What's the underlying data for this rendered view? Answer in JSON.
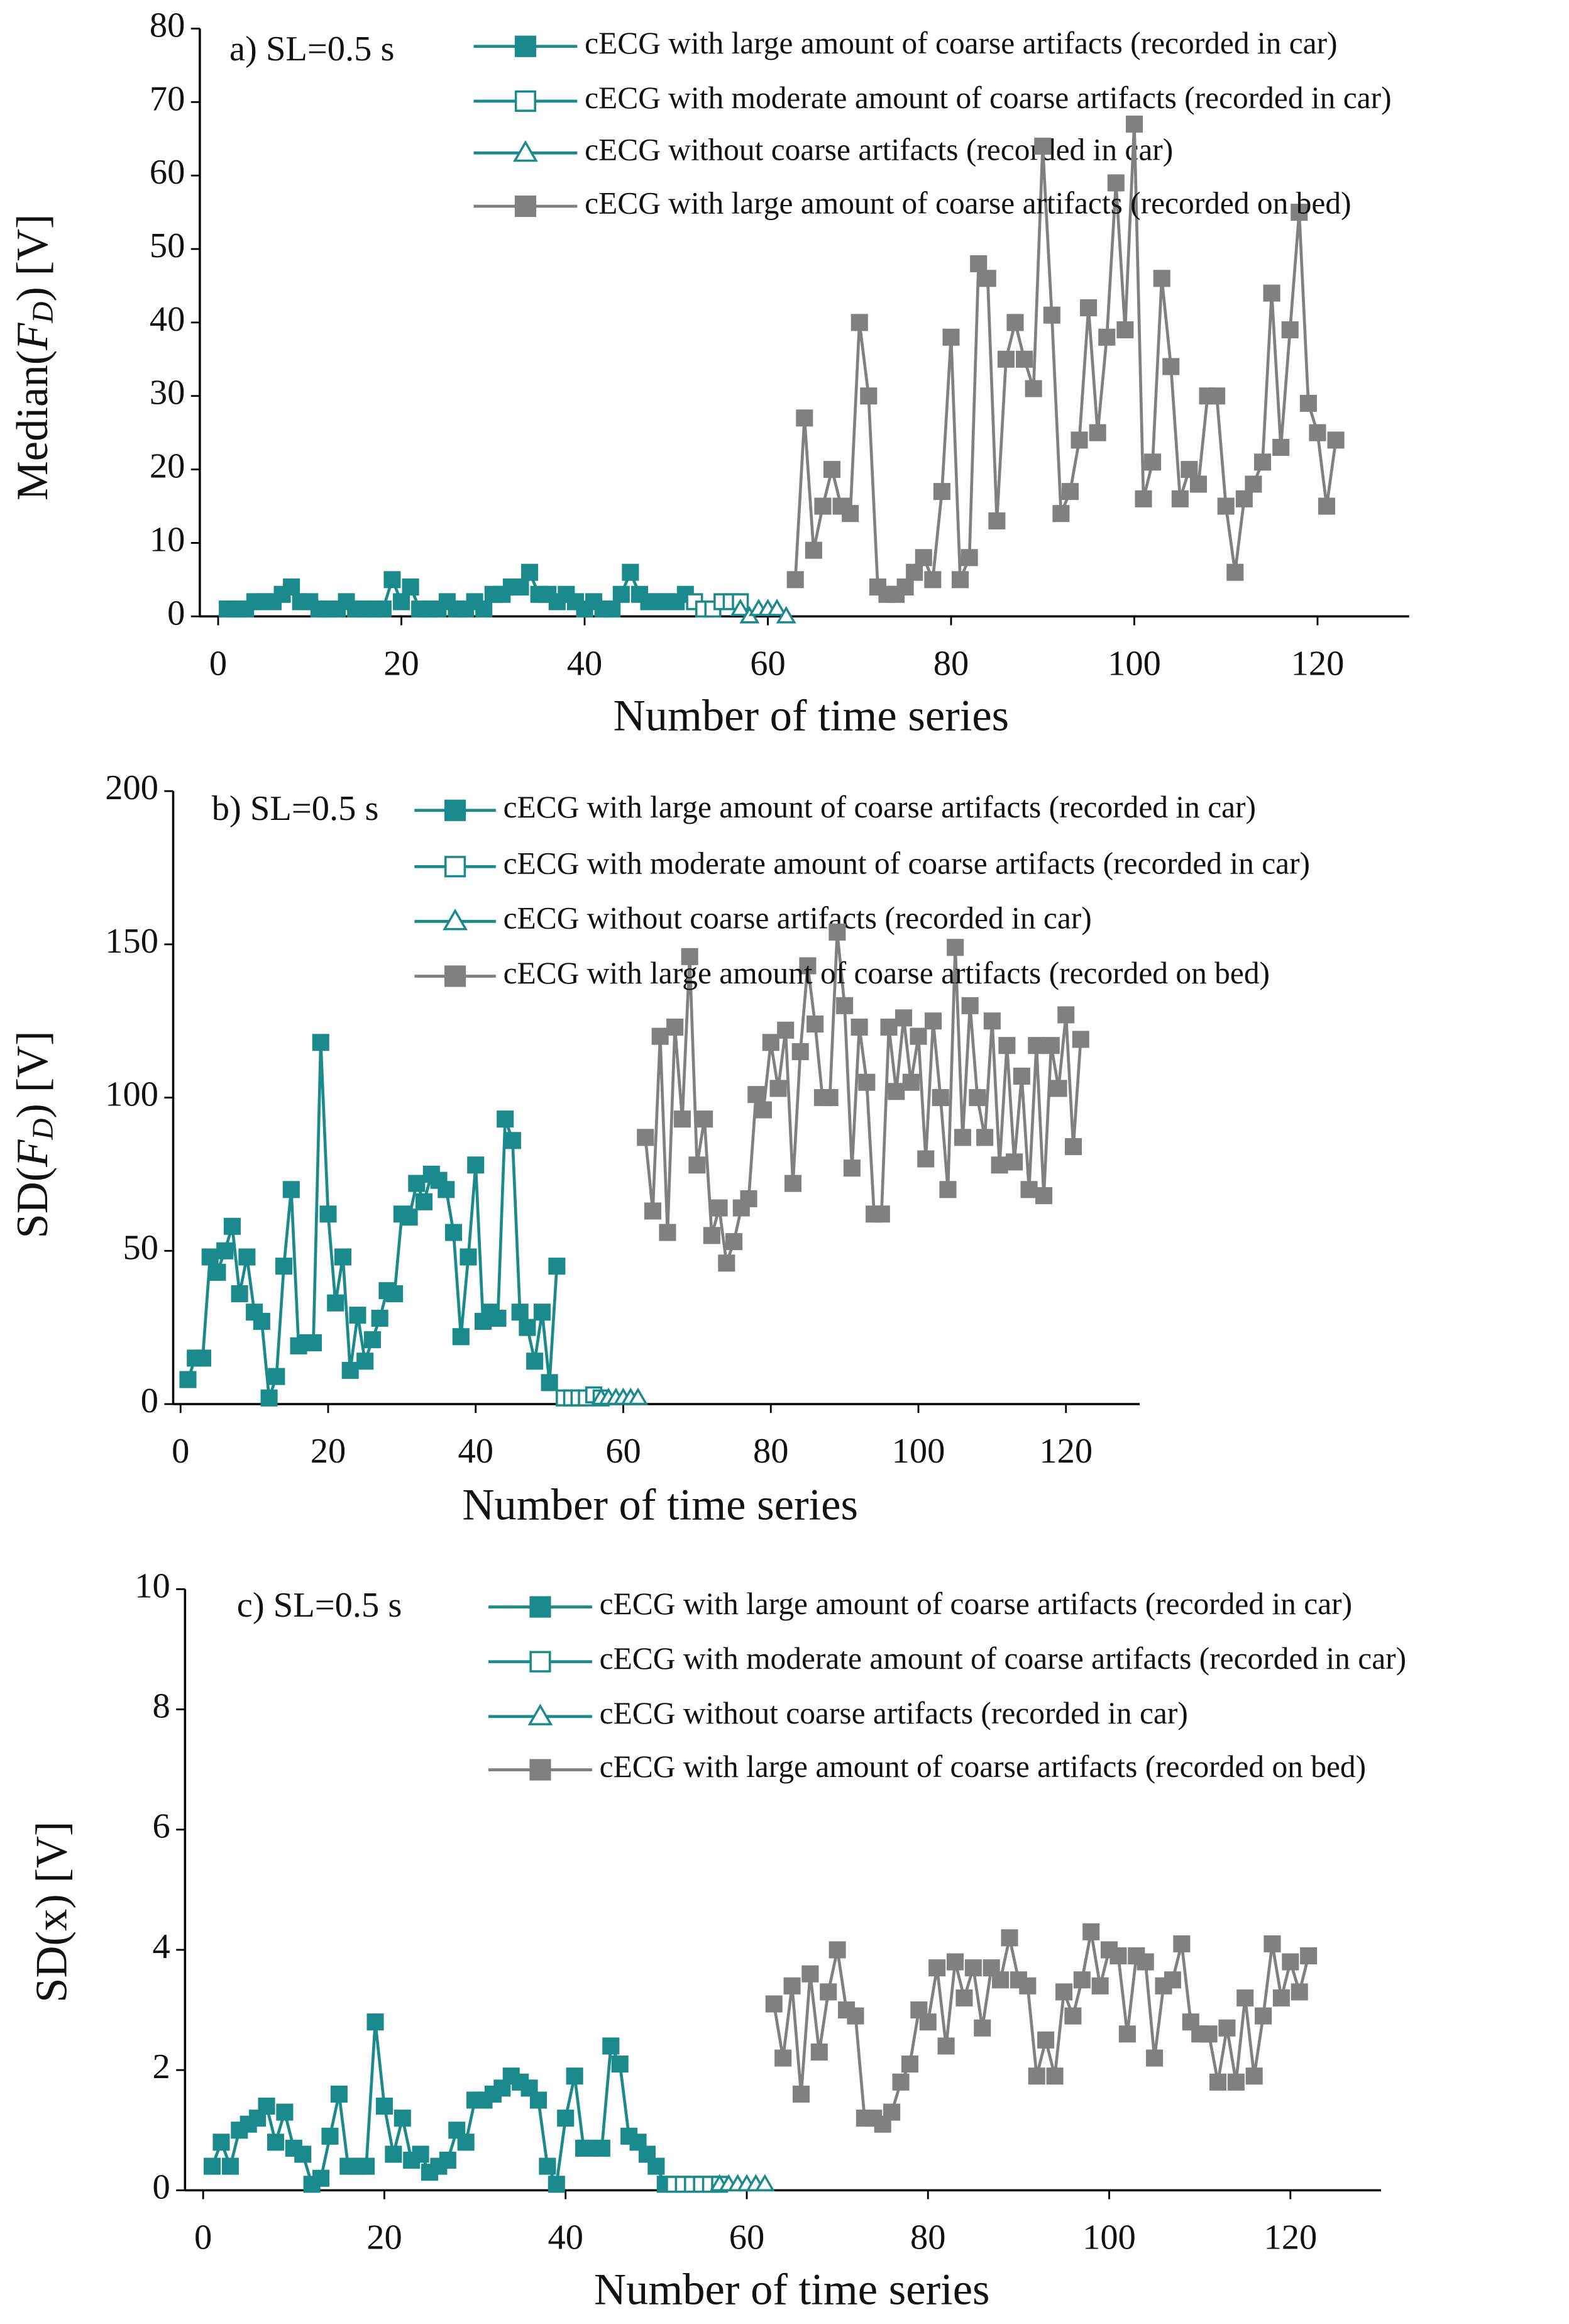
{
  "chart_data": [
    {
      "type": "line",
      "label": "a) SL=0.5 s",
      "xlabel": "Number of time series",
      "ylabel": {
        "pre": "Median(",
        "var": "F",
        "sub": "D",
        "post": ") [V]"
      },
      "xlim": [
        -2,
        130
      ],
      "xticks": [
        0,
        20,
        40,
        60,
        80,
        100,
        120
      ],
      "ylim": [
        0,
        80
      ],
      "yticks": [
        0,
        10,
        20,
        30,
        40,
        50,
        60,
        70,
        80
      ],
      "series": [
        {
          "name": "cECG  with large amount of coarse artifacts  (recorded in car)",
          "color": "#1a8a8c",
          "marker": "square",
          "filled": true,
          "x": [
            1,
            2,
            3,
            4,
            5,
            6,
            7,
            8,
            9,
            10,
            11,
            12,
            13,
            14,
            15,
            16,
            17,
            18,
            19,
            20,
            21,
            22,
            23,
            24,
            25,
            26,
            27,
            28,
            29,
            30,
            31,
            32,
            33,
            34,
            35,
            36,
            37,
            38,
            39,
            40,
            41,
            42,
            43,
            44,
            45,
            46,
            47,
            48,
            49,
            50,
            51
          ],
          "values": [
            1,
            1,
            1,
            2,
            2,
            2,
            3,
            4,
            2,
            2,
            1,
            1,
            1,
            2,
            1,
            1,
            1,
            1,
            5,
            2,
            4,
            1,
            1,
            1,
            2,
            1,
            1,
            2,
            1,
            3,
            3,
            4,
            4,
            6,
            3,
            3,
            2,
            3,
            2,
            1,
            2,
            1,
            1,
            3,
            6,
            3,
            2,
            2,
            2,
            2,
            3
          ]
        },
        {
          "name": "cECG   with moderate amount of coarse artifacts (recorded in car)",
          "color": "#1a8a8c",
          "marker": "square",
          "filled": false,
          "x": [
            52,
            53,
            54,
            55,
            56,
            57
          ],
          "values": [
            2,
            1,
            1,
            2,
            2,
            2
          ]
        },
        {
          "name": "cECG    without coarse artifacts (recorded in car)",
          "color": "#1a8a8c",
          "marker": "triangle",
          "filled": false,
          "x": [
            57,
            58,
            59,
            60,
            61,
            62
          ],
          "values": [
            1,
            0,
            1,
            1,
            1,
            0
          ]
        },
        {
          "name": "cECG  with large amount of coarse artifacts (recorded on bed)",
          "color": "#808080",
          "marker": "square",
          "filled": true,
          "x": [
            63,
            64,
            65,
            66,
            67,
            68,
            69,
            70,
            71,
            72,
            73,
            74,
            75,
            76,
            77,
            78,
            79,
            80,
            81,
            82,
            83,
            84,
            85,
            86,
            87,
            88,
            89,
            90,
            91,
            92,
            93,
            94,
            95,
            96,
            97,
            98,
            99,
            100,
            101,
            102,
            103,
            104,
            105,
            106,
            107,
            108,
            109,
            110,
            111,
            112,
            113,
            114,
            115,
            116,
            117,
            118,
            119,
            120,
            121,
            122
          ],
          "values": [
            5,
            27,
            9,
            15,
            20,
            15,
            14,
            40,
            30,
            4,
            3,
            3,
            4,
            6,
            8,
            5,
            17,
            38,
            5,
            8,
            48,
            46,
            13,
            35,
            40,
            35,
            31,
            64,
            41,
            14,
            17,
            24,
            42,
            25,
            38,
            59,
            39,
            67,
            16,
            21,
            46,
            34,
            16,
            20,
            18,
            30,
            30,
            15,
            6,
            16,
            18,
            21,
            44,
            23,
            39,
            55,
            29,
            25,
            15,
            24
          ]
        }
      ]
    },
    {
      "type": "line",
      "label": "b) SL=0.5 s",
      "xlabel": "Number of time series",
      "ylabel": {
        "pre": "SD(",
        "var": "F",
        "sub": "D",
        "post": ")  [V]"
      },
      "xlim": [
        -1,
        130
      ],
      "xticks": [
        0,
        20,
        40,
        60,
        80,
        100,
        120
      ],
      "ylim": [
        0,
        200
      ],
      "yticks": [
        0,
        50,
        100,
        150,
        200
      ],
      "series": [
        {
          "name": "cECG with large amount of coarse artifacts (recorded in car)",
          "color": "#1a8a8c",
          "marker": "square",
          "filled": true,
          "x": [
            1,
            2,
            3,
            4,
            5,
            6,
            7,
            8,
            9,
            10,
            11,
            12,
            13,
            14,
            15,
            16,
            17,
            18,
            19,
            20,
            21,
            22,
            23,
            24,
            25,
            26,
            27,
            28,
            29,
            30,
            31,
            32,
            33,
            34,
            35,
            36,
            37,
            38,
            39,
            40,
            41,
            42,
            43,
            44,
            45,
            46,
            47,
            48,
            49,
            50,
            51
          ],
          "values": [
            8,
            15,
            15,
            48,
            43,
            50,
            58,
            36,
            48,
            30,
            27,
            2,
            9,
            45,
            70,
            19,
            20,
            20,
            118,
            62,
            33,
            48,
            11,
            29,
            14,
            21,
            28,
            37,
            36,
            62,
            61,
            72,
            66,
            75,
            73,
            70,
            56,
            22,
            48,
            78,
            27,
            30,
            28,
            93,
            86,
            30,
            25,
            14,
            30,
            7,
            45
          ]
        },
        {
          "name": "cECG  with moderate amount of coarse artifacts (recorded in car)",
          "color": "#1a8a8c",
          "marker": "square",
          "filled": false,
          "x": [
            52,
            53,
            54,
            55,
            56,
            57
          ],
          "values": [
            2,
            2,
            2,
            2,
            3,
            2
          ]
        },
        {
          "name": "cECG without coarse artifacts (recorded in car)",
          "color": "#1a8a8c",
          "marker": "triangle",
          "filled": false,
          "x": [
            57,
            58,
            59,
            60,
            61,
            62
          ],
          "values": [
            2,
            2,
            2,
            2,
            2,
            2
          ]
        },
        {
          "name": "cECG  with large amount of coarse artifacts (recorded on bed)",
          "color": "#808080",
          "marker": "square",
          "filled": true,
          "x": [
            63,
            64,
            65,
            66,
            67,
            68,
            69,
            70,
            71,
            72,
            73,
            74,
            75,
            76,
            77,
            78,
            79,
            80,
            81,
            82,
            83,
            84,
            85,
            86,
            87,
            88,
            89,
            90,
            91,
            92,
            93,
            94,
            95,
            96,
            97,
            98,
            99,
            100,
            101,
            102,
            103,
            104,
            105,
            106,
            107,
            108,
            109,
            110,
            111,
            112,
            113,
            114,
            115,
            116,
            117,
            118,
            119,
            120,
            121,
            122
          ],
          "values": [
            87,
            63,
            120,
            56,
            123,
            93,
            146,
            78,
            93,
            55,
            64,
            46,
            53,
            64,
            67,
            101,
            96,
            118,
            103,
            122,
            72,
            115,
            143,
            124,
            100,
            100,
            154,
            130,
            77,
            123,
            105,
            62,
            62,
            123,
            102,
            126,
            105,
            120,
            80,
            125,
            100,
            70,
            149,
            87,
            130,
            100,
            87,
            125,
            78,
            117,
            79,
            107,
            70,
            117,
            68,
            117,
            103,
            127,
            84,
            119
          ]
        }
      ]
    },
    {
      "type": "line",
      "label": "c) SL=0.5 s",
      "xlabel": "Number of time series",
      "ylabel": {
        "pre": "SD(x) [V]",
        "var": "",
        "sub": "",
        "post": ""
      },
      "xlim": [
        -2,
        130
      ],
      "xticks": [
        0,
        20,
        40,
        60,
        80,
        100,
        120
      ],
      "ylim": [
        0,
        10
      ],
      "yticks": [
        0,
        2,
        4,
        6,
        8,
        10
      ],
      "series": [
        {
          "name": "cECG with large amount of coarse artifacts (recorded in car)",
          "color": "#1a8a8c",
          "marker": "square",
          "filled": true,
          "x": [
            1,
            2,
            3,
            4,
            5,
            6,
            7,
            8,
            9,
            10,
            11,
            12,
            13,
            14,
            15,
            16,
            17,
            18,
            19,
            20,
            21,
            22,
            23,
            24,
            25,
            26,
            27,
            28,
            29,
            30,
            31,
            32,
            33,
            34,
            35,
            36,
            37,
            38,
            39,
            40,
            41,
            42,
            43,
            44,
            45,
            46,
            47,
            48,
            49,
            50,
            51
          ],
          "values": [
            0.4,
            0.8,
            0.4,
            1.0,
            1.1,
            1.2,
            1.4,
            0.8,
            1.3,
            0.7,
            0.6,
            0.1,
            0.2,
            0.9,
            1.6,
            0.4,
            0.4,
            0.4,
            2.8,
            1.4,
            0.6,
            1.2,
            0.5,
            0.6,
            0.3,
            0.4,
            0.5,
            1.0,
            0.8,
            1.5,
            1.5,
            1.6,
            1.7,
            1.9,
            1.8,
            1.7,
            1.5,
            0.4,
            0.1,
            1.2,
            1.9,
            0.7,
            0.7,
            0.7,
            2.4,
            2.1,
            0.9,
            0.8,
            0.6,
            0.4,
            0.1
          ]
        },
        {
          "name": "cECG  with moderate amount of coarse artifacts (recorded in car)",
          "color": "#1a8a8c",
          "marker": "square",
          "filled": false,
          "x": [
            52,
            53,
            54,
            55,
            56,
            57
          ],
          "values": [
            0.1,
            0.1,
            0.1,
            0.1,
            0.1,
            0.1
          ]
        },
        {
          "name": "cECG  without coarse artifacts (recorded in car)",
          "color": "#1a8a8c",
          "marker": "triangle",
          "filled": false,
          "x": [
            57,
            58,
            59,
            60,
            61,
            62
          ],
          "values": [
            0.1,
            0.1,
            0.1,
            0.1,
            0.1,
            0.1
          ]
        },
        {
          "name": "cECG  with large amount of coarse artifacts (recorded on bed)",
          "color": "#808080",
          "marker": "square",
          "filled": true,
          "x": [
            63,
            64,
            65,
            66,
            67,
            68,
            69,
            70,
            71,
            72,
            73,
            74,
            75,
            76,
            77,
            78,
            79,
            80,
            81,
            82,
            83,
            84,
            85,
            86,
            87,
            88,
            89,
            90,
            91,
            92,
            93,
            94,
            95,
            96,
            97,
            98,
            99,
            100,
            101,
            102,
            103,
            104,
            105,
            106,
            107,
            108,
            109,
            110,
            111,
            112,
            113,
            114,
            115,
            116,
            117,
            118,
            119,
            120,
            121,
            122
          ],
          "values": [
            3.1,
            2.2,
            3.4,
            1.6,
            3.6,
            2.3,
            3.3,
            4.0,
            3.0,
            2.9,
            1.2,
            1.2,
            1.1,
            1.3,
            1.8,
            2.1,
            3.0,
            2.8,
            3.7,
            2.4,
            3.8,
            3.2,
            3.7,
            2.7,
            3.7,
            3.5,
            4.2,
            3.5,
            3.4,
            1.9,
            2.5,
            1.9,
            3.3,
            2.9,
            3.5,
            4.3,
            3.4,
            4.0,
            3.9,
            2.6,
            3.9,
            3.8,
            2.2,
            3.4,
            3.5,
            4.1,
            2.8,
            2.6,
            2.6,
            1.8,
            2.7,
            1.8,
            3.2,
            1.9,
            2.9,
            4.1,
            3.2,
            3.8,
            3.3,
            3.9
          ]
        }
      ]
    }
  ]
}
